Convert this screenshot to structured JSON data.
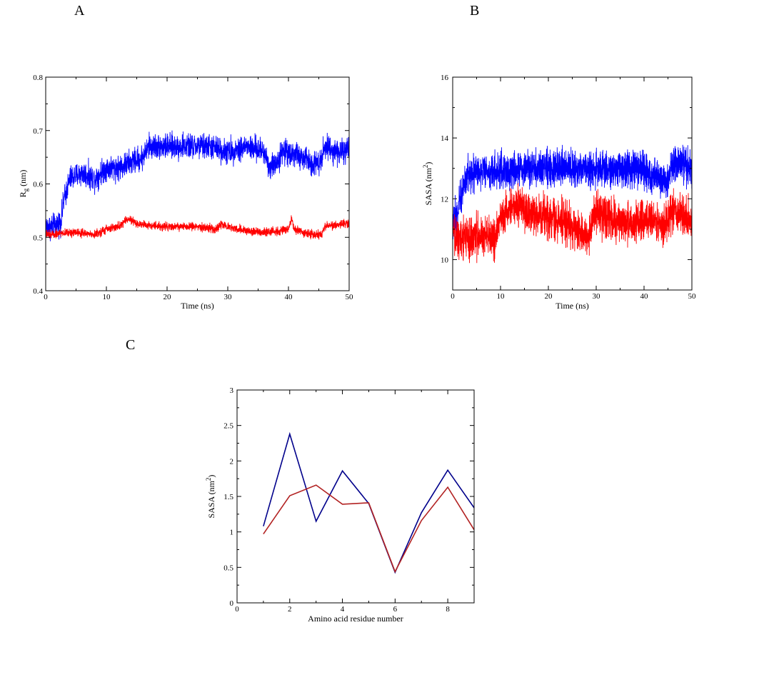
{
  "panels": {
    "a": "A",
    "b": "B",
    "c": "C"
  },
  "colors": {
    "blue": "#0000ff",
    "red": "#ff0000",
    "navy": "#00008b",
    "darkred": "#b22222"
  },
  "chart_data": [
    {
      "type": "line",
      "panel": "A",
      "xlabel": "Time (ns)",
      "ylabel": "Rg (nm)",
      "ylabel_main": "R",
      "ylabel_sub": "g",
      "ylabel_rest": " (nm)",
      "xlim": [
        0,
        50
      ],
      "ylim": [
        0.4,
        0.8
      ],
      "xticks": [
        0,
        10,
        20,
        30,
        40,
        50
      ],
      "yticks": [
        0.4,
        0.5,
        0.6,
        0.7,
        0.8
      ],
      "ytick_labels": [
        "0.4",
        "0.5",
        "0.6",
        "0.7",
        "0.8"
      ],
      "noisy": true,
      "series": [
        {
          "color": "#0000ff",
          "noise": 0.018,
          "x": [
            0,
            1.5,
            2.5,
            3,
            4,
            6,
            8,
            10,
            12,
            14,
            16,
            17,
            20,
            24,
            27,
            30,
            33,
            36,
            37,
            38,
            39,
            40,
            42,
            44,
            45,
            46,
            48,
            50
          ],
          "y": [
            0.52,
            0.52,
            0.53,
            0.57,
            0.61,
            0.62,
            0.61,
            0.63,
            0.63,
            0.64,
            0.65,
            0.67,
            0.67,
            0.67,
            0.67,
            0.66,
            0.67,
            0.66,
            0.63,
            0.64,
            0.66,
            0.66,
            0.65,
            0.64,
            0.64,
            0.67,
            0.66,
            0.66
          ]
        },
        {
          "color": "#ff0000",
          "noise": 0.006,
          "x": [
            0,
            5,
            8,
            10,
            12,
            13.5,
            15,
            20,
            25,
            28,
            29,
            30,
            32,
            35,
            38,
            40,
            40.5,
            41,
            44,
            45.5,
            46,
            48,
            50
          ],
          "y": [
            0.505,
            0.51,
            0.505,
            0.515,
            0.52,
            0.535,
            0.525,
            0.52,
            0.52,
            0.515,
            0.525,
            0.52,
            0.515,
            0.51,
            0.51,
            0.515,
            0.535,
            0.515,
            0.505,
            0.505,
            0.52,
            0.525,
            0.525
          ]
        }
      ]
    },
    {
      "type": "line",
      "panel": "B",
      "xlabel": "Time (ns)",
      "ylabel": "SASA (nm2)",
      "ylabel_main": "SASA (nm",
      "ylabel_sup": "2",
      "ylabel_rest": ")",
      "xlim": [
        0,
        50
      ],
      "ylim": [
        9,
        16
      ],
      "xticks": [
        0,
        10,
        20,
        30,
        40,
        50
      ],
      "yticks": [
        10,
        12,
        14,
        16
      ],
      "ytick_labels": [
        "10",
        "12",
        "14",
        "16"
      ],
      "noisy": true,
      "series": [
        {
          "color": "#0000ff",
          "noise": 0.45,
          "x": [
            0,
            1,
            2,
            3,
            5,
            10,
            15,
            20,
            25,
            30,
            35,
            40,
            44,
            45,
            46,
            48,
            50
          ],
          "y": [
            11.2,
            11.5,
            12.3,
            12.8,
            12.9,
            12.9,
            13.0,
            13.0,
            13.0,
            13.0,
            13.0,
            12.9,
            12.7,
            12.6,
            13.2,
            13.2,
            13.0
          ]
        },
        {
          "color": "#ff0000",
          "noise": 0.5,
          "x": [
            0,
            3,
            6,
            9,
            10,
            12,
            14,
            16,
            20,
            24,
            26,
            28,
            30,
            33,
            36,
            40,
            42,
            44,
            46,
            48,
            50
          ],
          "y": [
            10.8,
            10.7,
            10.8,
            10.7,
            11.4,
            11.7,
            11.8,
            11.5,
            11.4,
            11.2,
            11.0,
            10.6,
            11.6,
            11.3,
            11.2,
            11.3,
            11.4,
            11.0,
            11.6,
            11.4,
            11.3
          ]
        }
      ]
    },
    {
      "type": "line",
      "panel": "C",
      "xlabel": "Amino acid residue number",
      "ylabel": "SASA (nm2)",
      "ylabel_main": "SASA (nm",
      "ylabel_sup": "2",
      "ylabel_rest": ")",
      "xlim": [
        0,
        9
      ],
      "ylim": [
        0,
        3
      ],
      "xticks": [
        0,
        2,
        4,
        6,
        8
      ],
      "yticks": [
        0,
        0.5,
        1,
        1.5,
        2,
        2.5,
        3
      ],
      "ytick_labels": [
        "0",
        "0.5",
        "1",
        "1.5",
        "2",
        "2.5",
        "3"
      ],
      "noisy": false,
      "series": [
        {
          "color": "#00008b",
          "x": [
            1,
            2,
            3,
            4,
            5,
            6,
            7,
            8,
            9
          ],
          "y": [
            1.08,
            2.38,
            1.15,
            1.86,
            1.4,
            0.43,
            1.27,
            1.87,
            1.34
          ]
        },
        {
          "color": "#b22222",
          "x": [
            1,
            2,
            3,
            4,
            5,
            6,
            7,
            8,
            9
          ],
          "y": [
            0.97,
            1.51,
            1.66,
            1.39,
            1.41,
            0.44,
            1.16,
            1.63,
            1.03
          ]
        }
      ]
    }
  ]
}
